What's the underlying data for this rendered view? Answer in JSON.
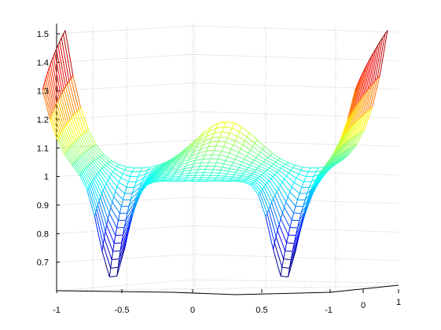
{
  "chart_data": {
    "type": "surface-mesh",
    "colormap": "jet",
    "surface": {
      "u_range": [
        -1,
        1
      ],
      "v_range": [
        0,
        1
      ],
      "rows": 16,
      "cols": 42,
      "depth_axis_ticks": [
        "-1",
        "0",
        "1"
      ]
    },
    "z_ticks": [
      "0.7",
      "0.8",
      "0.9",
      "1",
      "1.1",
      "1.2",
      "1.3",
      "1.4",
      "1.5"
    ],
    "x_ticks": [
      "-1",
      "-0.5",
      "0",
      "0.5"
    ],
    "zlim": [
      0.6,
      1.5
    ],
    "grid": true
  }
}
